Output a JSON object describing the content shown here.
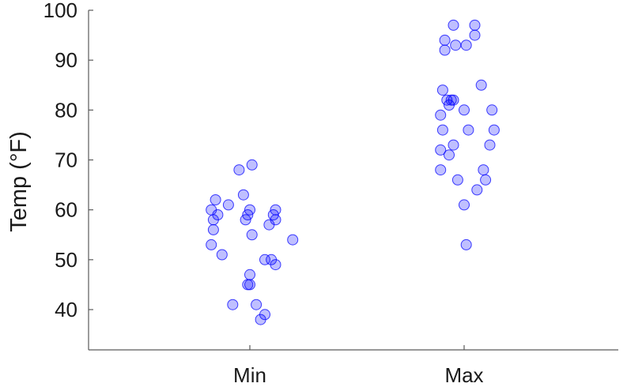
{
  "chart_data": {
    "type": "scatter",
    "title": "",
    "xlabel": "",
    "ylabel": "Temp (°F)",
    "ylim": [
      33,
      100
    ],
    "yticks": [
      40,
      50,
      60,
      70,
      80,
      90,
      100
    ],
    "categories": [
      "Min",
      "Max"
    ],
    "grid": false,
    "legend": "none",
    "marker_color": "#0000ff",
    "marker_fill_opacity": 0.25,
    "series": [
      {
        "category": "Min",
        "points": [
          {
            "jitter": -0.18,
            "y": 60
          },
          {
            "jitter": -0.17,
            "y": 58
          },
          {
            "jitter": -0.17,
            "y": 56
          },
          {
            "jitter": -0.18,
            "y": 53
          },
          {
            "jitter": -0.16,
            "y": 62
          },
          {
            "jitter": -0.15,
            "y": 59
          },
          {
            "jitter": -0.13,
            "y": 51
          },
          {
            "jitter": -0.1,
            "y": 61
          },
          {
            "jitter": -0.08,
            "y": 41
          },
          {
            "jitter": -0.05,
            "y": 68
          },
          {
            "jitter": -0.03,
            "y": 63
          },
          {
            "jitter": -0.02,
            "y": 58
          },
          {
            "jitter": -0.01,
            "y": 59
          },
          {
            "jitter": 0.0,
            "y": 60
          },
          {
            "jitter": 0.0,
            "y": 47
          },
          {
            "jitter": -0.01,
            "y": 45
          },
          {
            "jitter": 0.0,
            "y": 45
          },
          {
            "jitter": 0.01,
            "y": 69
          },
          {
            "jitter": 0.01,
            "y": 55
          },
          {
            "jitter": 0.03,
            "y": 41
          },
          {
            "jitter": 0.05,
            "y": 38
          },
          {
            "jitter": 0.07,
            "y": 39
          },
          {
            "jitter": 0.07,
            "y": 50
          },
          {
            "jitter": 0.09,
            "y": 57
          },
          {
            "jitter": 0.1,
            "y": 50
          },
          {
            "jitter": 0.11,
            "y": 59
          },
          {
            "jitter": 0.12,
            "y": 60
          },
          {
            "jitter": 0.12,
            "y": 58
          },
          {
            "jitter": 0.12,
            "y": 49
          },
          {
            "jitter": 0.2,
            "y": 54
          }
        ]
      },
      {
        "category": "Max",
        "points": [
          {
            "jitter": -0.11,
            "y": 79
          },
          {
            "jitter": -0.11,
            "y": 72
          },
          {
            "jitter": -0.11,
            "y": 68
          },
          {
            "jitter": -0.1,
            "y": 84
          },
          {
            "jitter": -0.1,
            "y": 76
          },
          {
            "jitter": -0.09,
            "y": 94
          },
          {
            "jitter": -0.09,
            "y": 92
          },
          {
            "jitter": -0.08,
            "y": 82
          },
          {
            "jitter": -0.07,
            "y": 81
          },
          {
            "jitter": -0.07,
            "y": 71
          },
          {
            "jitter": -0.06,
            "y": 82
          },
          {
            "jitter": -0.05,
            "y": 82
          },
          {
            "jitter": -0.05,
            "y": 97
          },
          {
            "jitter": -0.05,
            "y": 73
          },
          {
            "jitter": -0.04,
            "y": 93
          },
          {
            "jitter": -0.03,
            "y": 66
          },
          {
            "jitter": 0.0,
            "y": 80
          },
          {
            "jitter": 0.0,
            "y": 61
          },
          {
            "jitter": 0.01,
            "y": 93
          },
          {
            "jitter": 0.01,
            "y": 53
          },
          {
            "jitter": 0.02,
            "y": 76
          },
          {
            "jitter": 0.05,
            "y": 97
          },
          {
            "jitter": 0.05,
            "y": 95
          },
          {
            "jitter": 0.06,
            "y": 64
          },
          {
            "jitter": 0.08,
            "y": 85
          },
          {
            "jitter": 0.09,
            "y": 68
          },
          {
            "jitter": 0.1,
            "y": 66
          },
          {
            "jitter": 0.12,
            "y": 73
          },
          {
            "jitter": 0.13,
            "y": 80
          },
          {
            "jitter": 0.14,
            "y": 76
          }
        ]
      }
    ]
  }
}
